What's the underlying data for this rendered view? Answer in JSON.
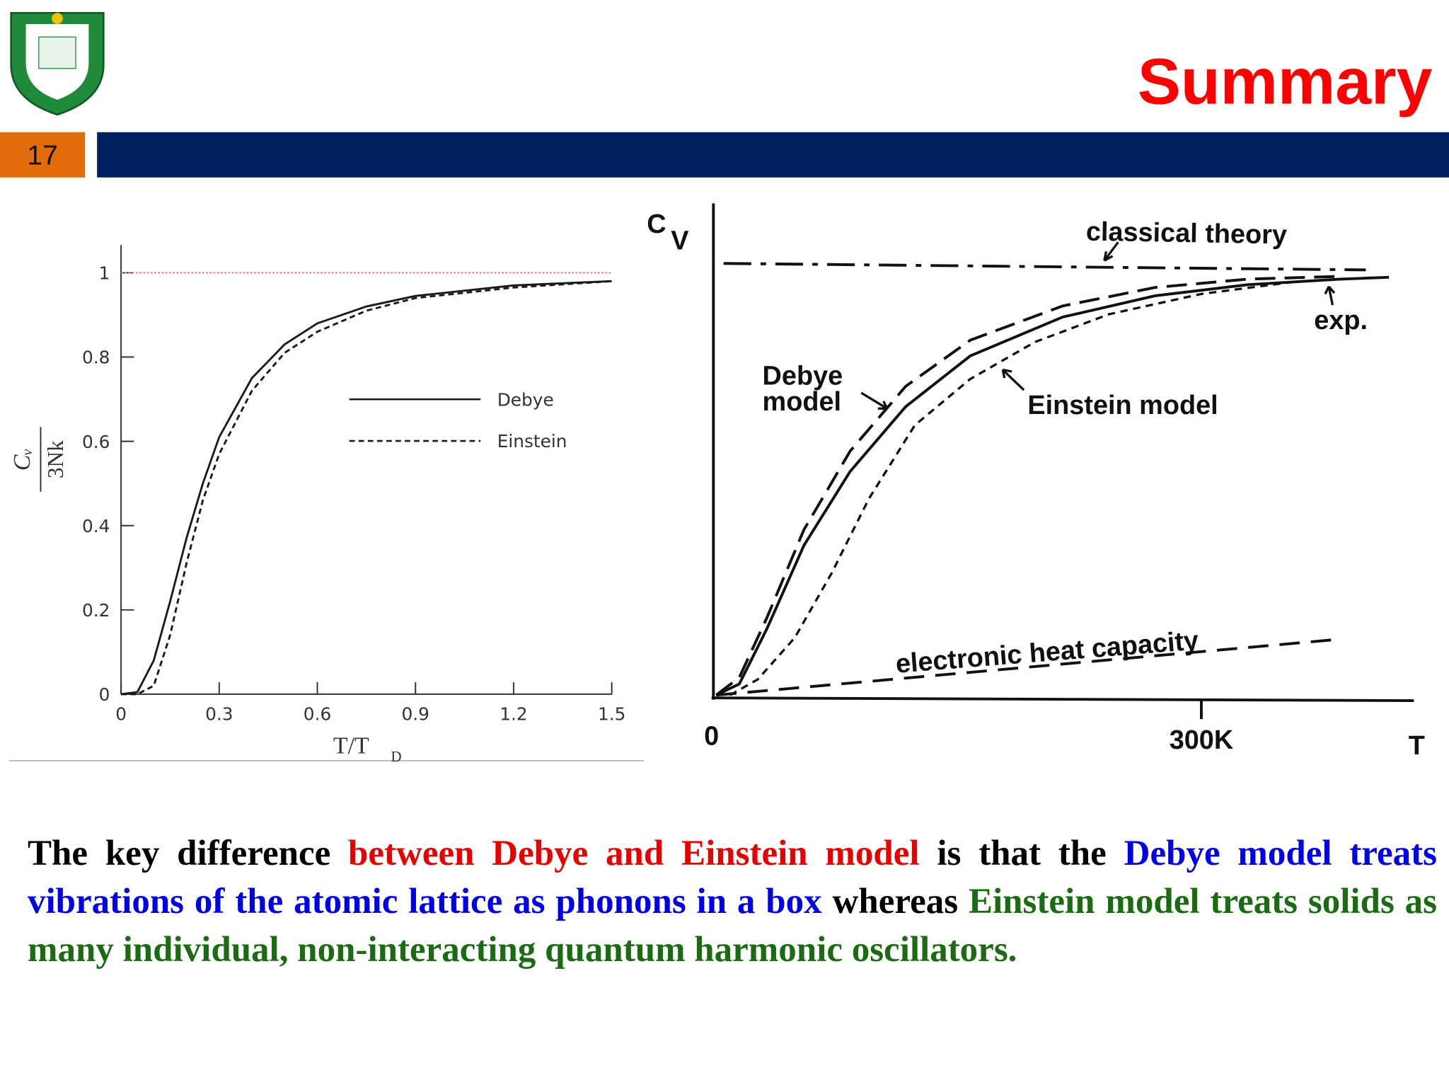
{
  "header": {
    "title": "Summary",
    "page_number": "17"
  },
  "chart_data": [
    {
      "type": "line",
      "ylabel_numerator": "Cᵥ",
      "ylabel_denominator": "3Nk",
      "xlabel": "T/T",
      "xlabel_sub": "D",
      "x": [
        0,
        0.05,
        0.1,
        0.15,
        0.2,
        0.25,
        0.3,
        0.4,
        0.5,
        0.6,
        0.75,
        0.9,
        1.2,
        1.5
      ],
      "series": [
        {
          "name": "Debye",
          "color": "#1a1a1a",
          "dash": "none",
          "values": [
            0,
            0.005,
            0.08,
            0.22,
            0.37,
            0.5,
            0.61,
            0.75,
            0.83,
            0.88,
            0.92,
            0.945,
            0.97,
            0.98
          ]
        },
        {
          "name": "Einstein",
          "color": "#1a1a1a",
          "dash": "6 4",
          "values": [
            0,
            0,
            0.02,
            0.14,
            0.31,
            0.46,
            0.57,
            0.72,
            0.81,
            0.86,
            0.91,
            0.94,
            0.965,
            0.98
          ]
        }
      ],
      "reference_line": {
        "value": 1,
        "color": "#e07070"
      },
      "xlim": [
        0,
        1.5
      ],
      "ylim": [
        0,
        1.066
      ],
      "xticks": [
        0,
        0.3,
        0.6,
        0.9,
        1.2,
        1.5
      ],
      "yticks": [
        0,
        0.2,
        0.4,
        0.6,
        0.8,
        1
      ]
    },
    {
      "type": "schematic",
      "ylabel": "C",
      "ylabel_sub": "V",
      "x_labels": [
        "0",
        "300K",
        "T"
      ],
      "annotations": [
        "classical theory",
        "exp.",
        "Debye",
        "model",
        "Einstein model",
        "electronic heat capacity"
      ]
    }
  ],
  "paragraph": [
    {
      "text": "The key difference ",
      "color": "#000000"
    },
    {
      "text": "between Debye and Einstein model",
      "color": "#e60000"
    },
    {
      "text": " is that the ",
      "color": "#000000"
    },
    {
      "text": "Debye model treats vibrations of the atomic lattice as phonons in a box",
      "color": "#0000e6"
    },
    {
      "text": " whereas ",
      "color": "#000000"
    },
    {
      "text": "Einstein model treats solids as many individual, non-interacting quantum harmonic oscillators.",
      "color": "#1a6b12"
    }
  ]
}
